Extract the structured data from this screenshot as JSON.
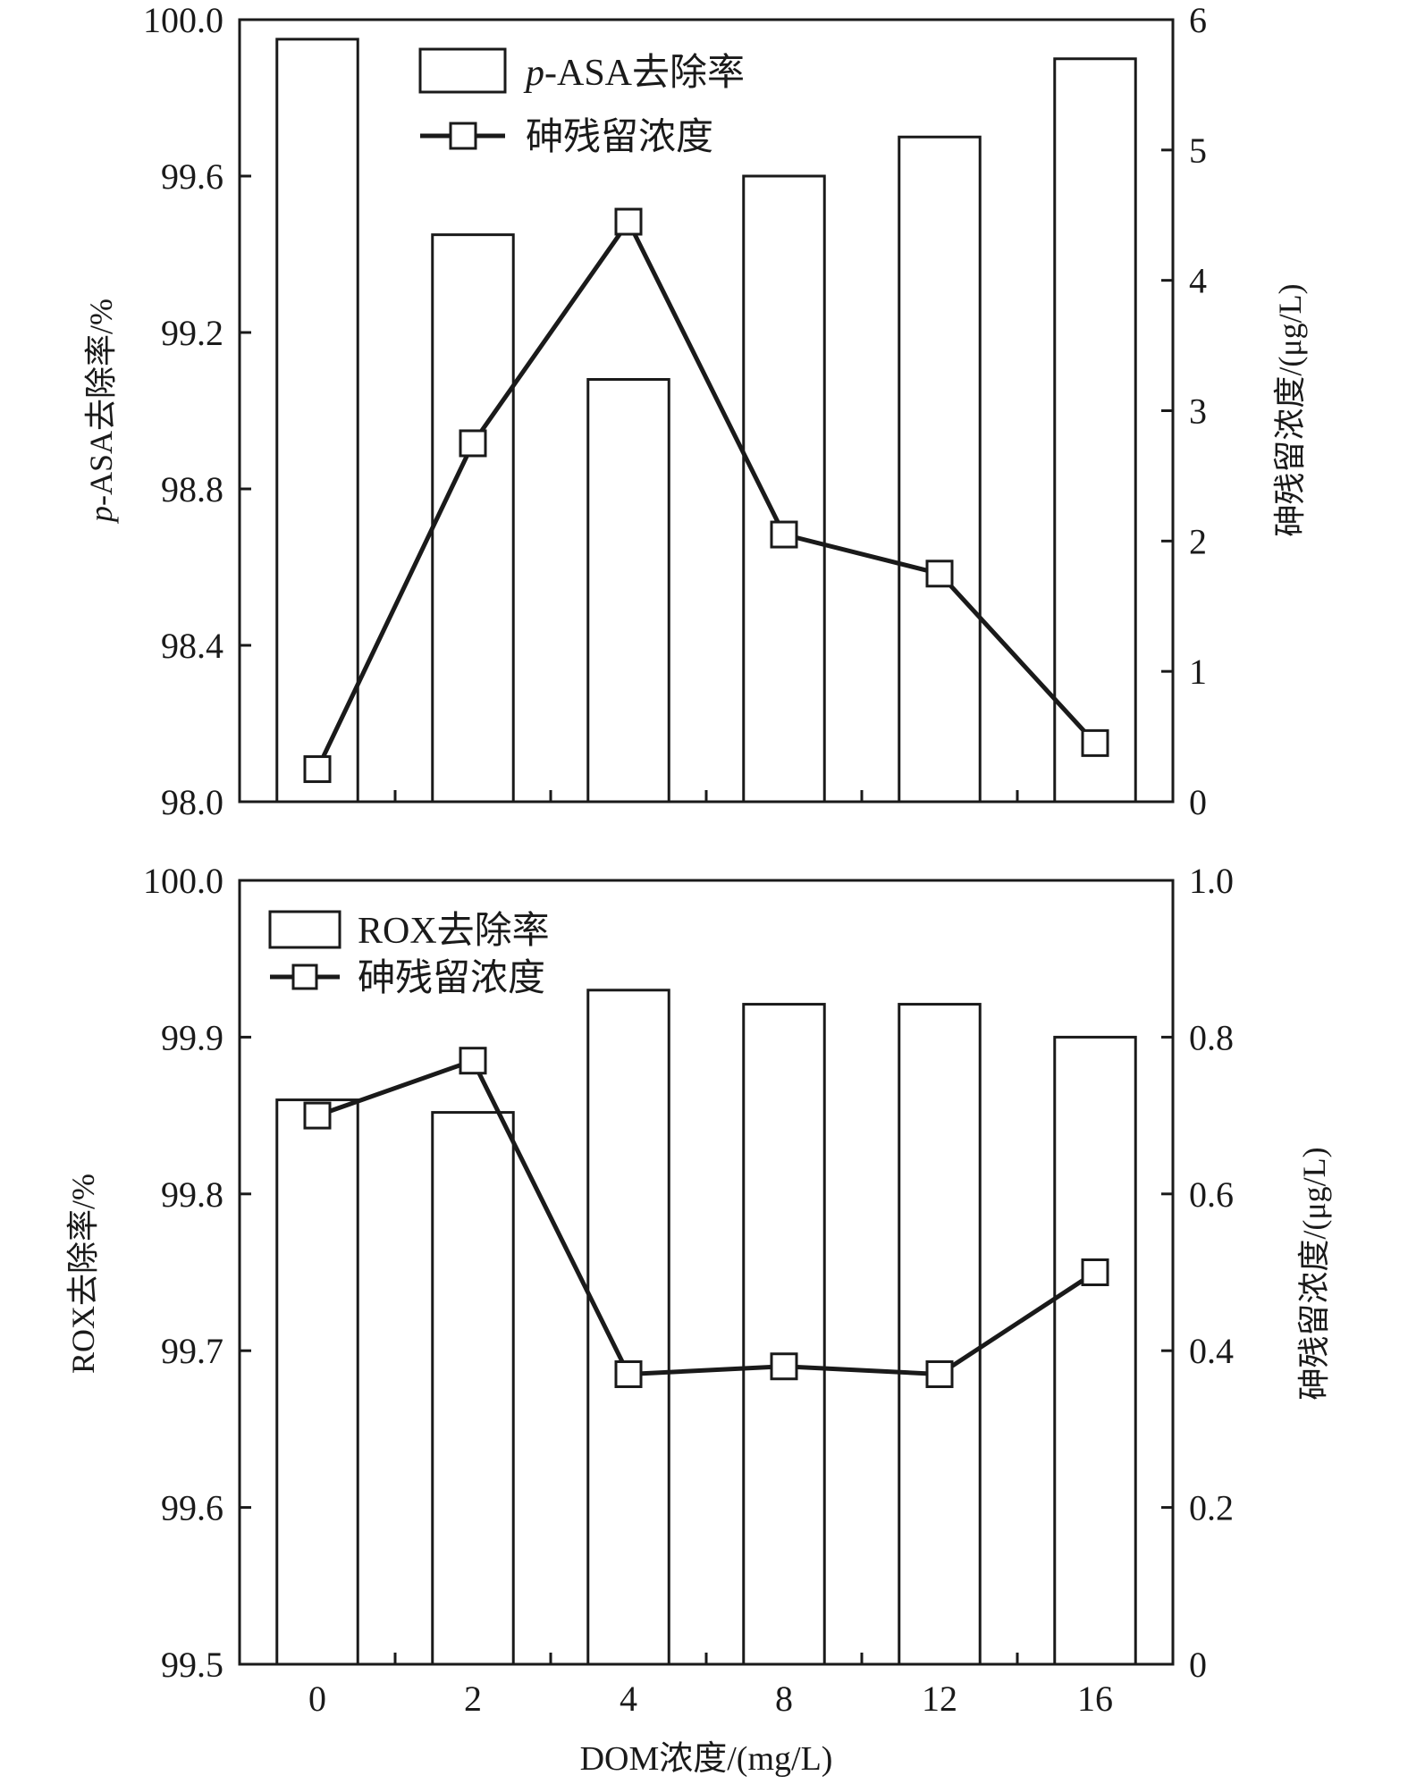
{
  "chart_data": [
    {
      "type": "bar",
      "categories": [
        "0",
        "2",
        "4",
        "8",
        "12",
        "16"
      ],
      "bar_series": {
        "name": "p-ASA去除率",
        "name_italic_part": "p",
        "name_rest": "-ASA去除率",
        "values": [
          99.95,
          99.45,
          99.08,
          99.6,
          99.7,
          99.9
        ]
      },
      "line_series": {
        "name": "砷残留浓度",
        "values": [
          0.25,
          2.75,
          4.45,
          2.05,
          1.75,
          0.45
        ]
      },
      "ylabel_left": "p-ASA去除率/%",
      "ylabel_left_italic": "p",
      "ylabel_left_rest": "-ASA去除率/%",
      "ylabel_right": "砷残留浓度/(μg/L)",
      "ylim_left": [
        98.0,
        100.0
      ],
      "yticks_left": [
        "98.0",
        "98.4",
        "98.8",
        "99.2",
        "99.6",
        "100.0"
      ],
      "ylim_right": [
        0,
        6
      ],
      "yticks_right": [
        "0",
        "1",
        "2",
        "3",
        "4",
        "5",
        "6"
      ],
      "legend_position": "top-left"
    },
    {
      "type": "bar",
      "categories": [
        "0",
        "2",
        "4",
        "8",
        "12",
        "16"
      ],
      "bar_series": {
        "name": "ROX去除率",
        "values": [
          99.86,
          99.852,
          99.93,
          99.921,
          99.921,
          99.9
        ]
      },
      "line_series": {
        "name": "砷残留浓度",
        "values": [
          0.7,
          0.77,
          0.37,
          0.38,
          0.37,
          0.5
        ]
      },
      "ylabel_left": "ROX去除率/%",
      "ylabel_right": "砷残留浓度/(μg/L)",
      "ylim_left": [
        99.5,
        100.0
      ],
      "yticks_left": [
        "99.5",
        "99.6",
        "99.7",
        "99.8",
        "99.9",
        "100.0"
      ],
      "ylim_right": [
        0,
        1.0
      ],
      "yticks_right": [
        "0",
        "0.2",
        "0.4",
        "0.6",
        "0.8",
        "1.0"
      ],
      "legend_position": "top-left",
      "xlabel": "DOM浓度/(mg/L)"
    }
  ]
}
